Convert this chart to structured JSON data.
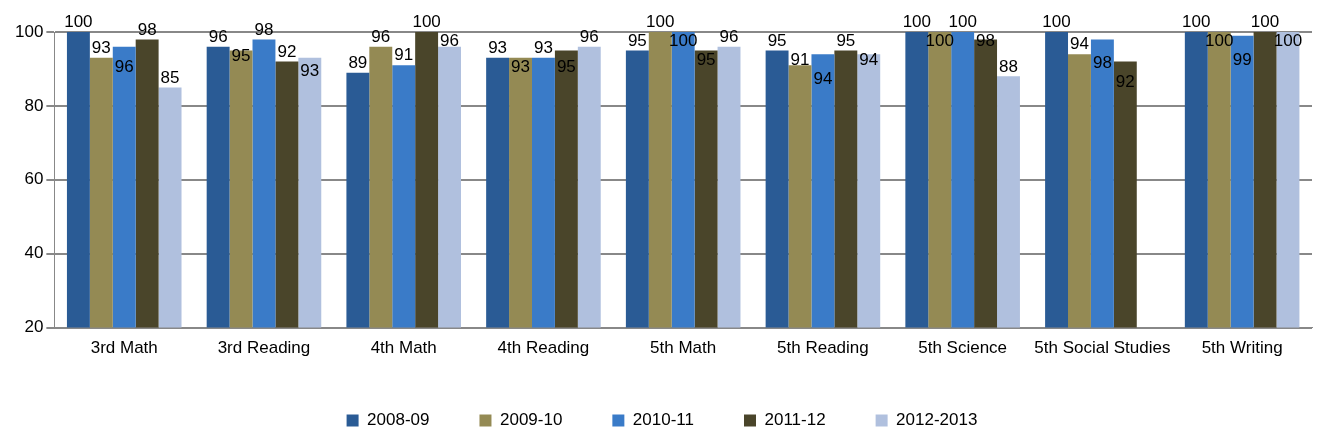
{
  "chart_data": {
    "type": "bar",
    "categories": [
      "3rd Math",
      "3rd Reading",
      "4th Math",
      "4th Reading",
      "5th Math",
      "5th Reading",
      "5th Science",
      "5th Social Studies",
      "5th Writing"
    ],
    "series": [
      {
        "name": "2008-09",
        "color": "#2a5b95",
        "values": [
          100,
          96,
          89,
          93,
          95,
          95,
          100,
          100,
          100
        ]
      },
      {
        "name": "2009-10",
        "color": "#948a54",
        "values": [
          93,
          95,
          96,
          93,
          100,
          91,
          100,
          94,
          100
        ]
      },
      {
        "name": "2010-11",
        "color": "#3a7bc8",
        "values": [
          96,
          98,
          91,
          93,
          100,
          94,
          100,
          98,
          99
        ]
      },
      {
        "name": "2011-12",
        "color": "#4a452a",
        "values": [
          98,
          92,
          100,
          95,
          95,
          95,
          98,
          92,
          100
        ]
      },
      {
        "name": "2012-2013",
        "color": "#b0c0de",
        "values": [
          85,
          93,
          96,
          96,
          96,
          94,
          88,
          null,
          100
        ]
      }
    ],
    "ylim": [
      20,
      100
    ],
    "yticks": [
      20,
      40,
      60,
      80,
      100
    ],
    "grid": "y",
    "legend": "bottom",
    "data_labels": true
  }
}
